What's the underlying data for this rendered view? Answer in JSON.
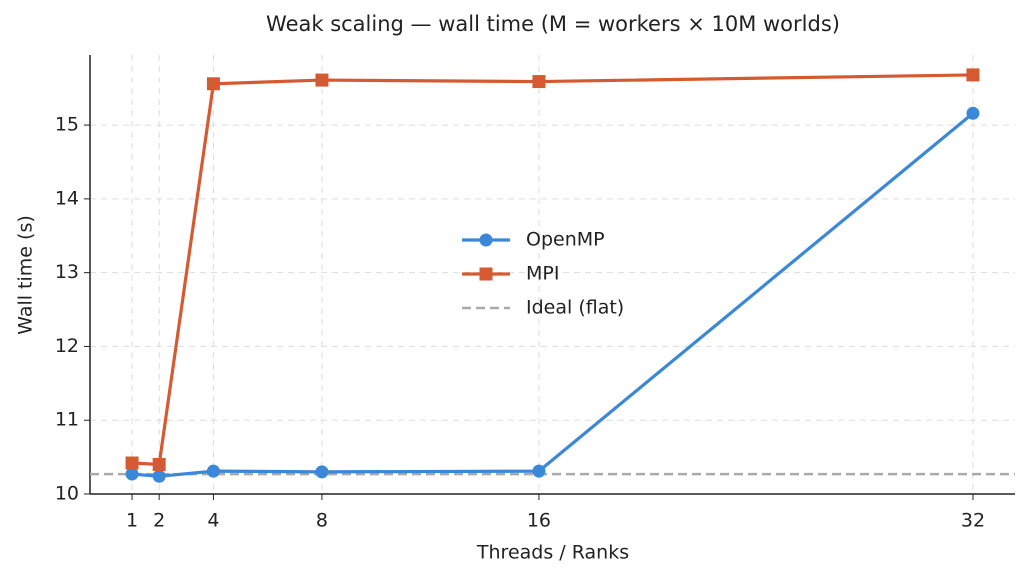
{
  "chart_data": {
    "type": "line",
    "title": "Weak scaling — wall time  (M = workers × 10M worlds)",
    "x_label": "Threads / Ranks",
    "y_label": "Wall time (s)",
    "x": [
      1,
      2,
      4,
      8,
      16,
      32
    ],
    "series": [
      {
        "name": "OpenMP",
        "color": "#3b87d8",
        "marker": "circle",
        "values": [
          10.27,
          10.24,
          10.31,
          10.3,
          10.31,
          15.16
        ]
      },
      {
        "name": "MPI",
        "color": "#d65a31",
        "marker": "square",
        "values": [
          10.42,
          10.4,
          15.56,
          15.61,
          15.59,
          15.68
        ]
      }
    ],
    "reference": {
      "name": "Ideal (flat)",
      "color": "#aaaaaa",
      "value": 10.27
    },
    "xlim": [
      -0.55,
      33.55
    ],
    "ylim": [
      10,
      15.95
    ],
    "xticks": [
      1,
      2,
      4,
      8,
      16,
      32
    ],
    "yticks": [
      10,
      11,
      12,
      13,
      14,
      15
    ],
    "grid": true,
    "legend": "center"
  }
}
